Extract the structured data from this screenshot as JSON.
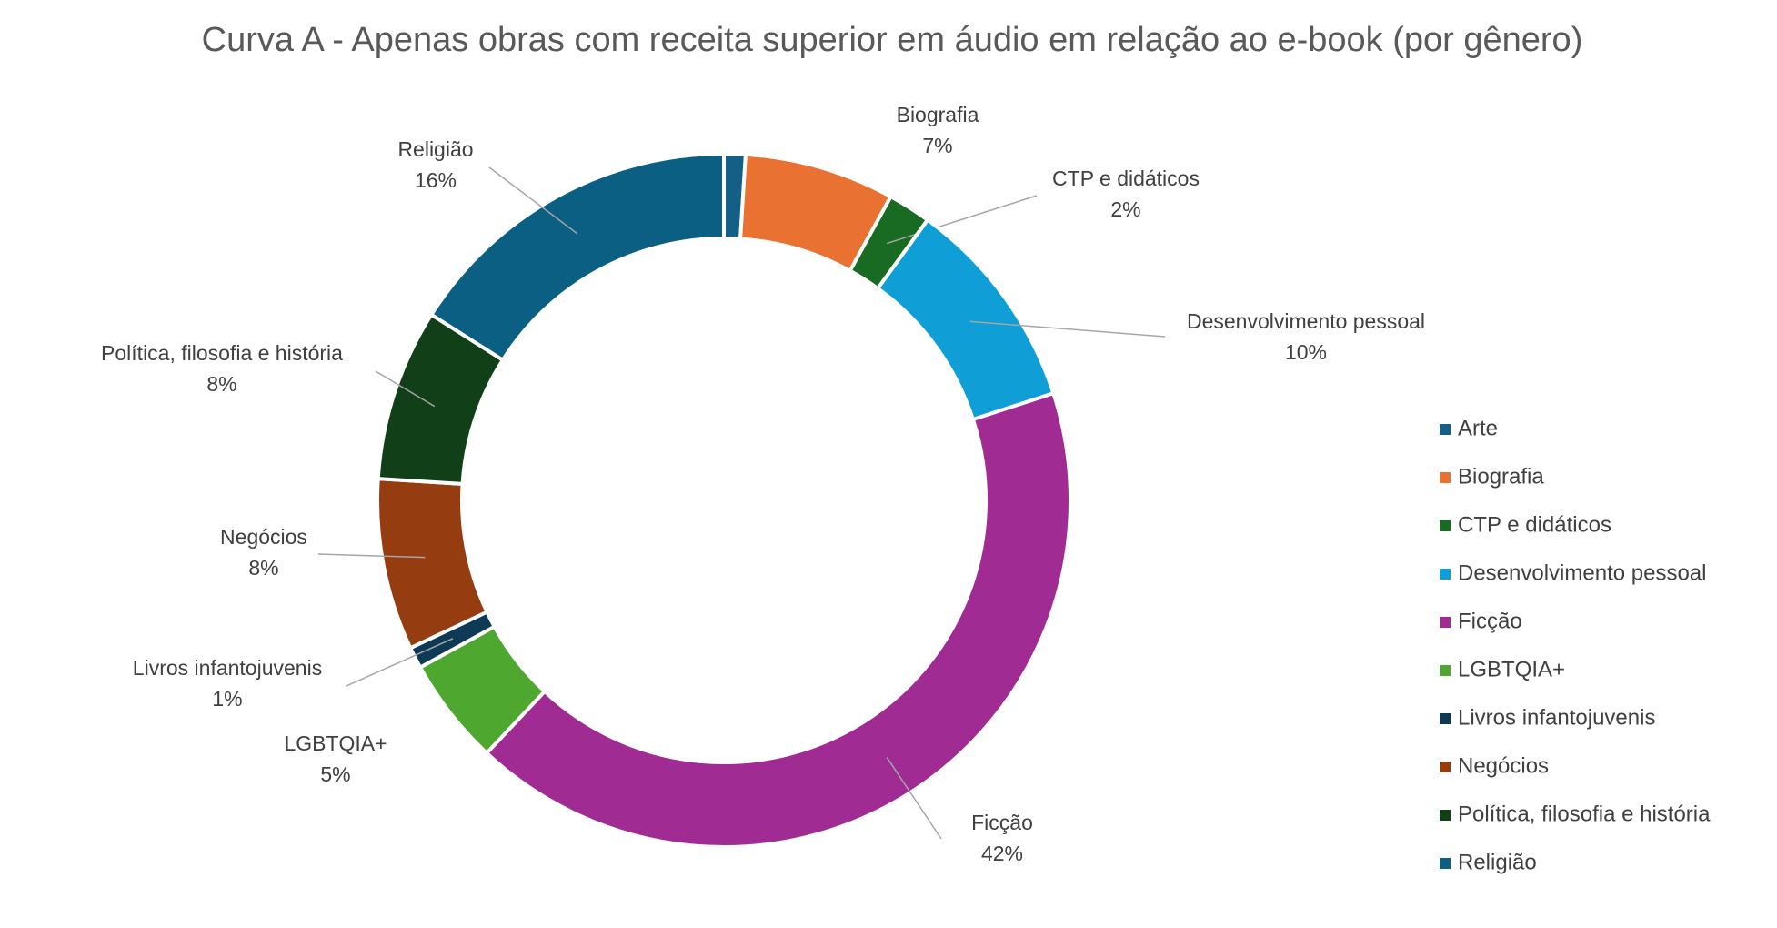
{
  "chart_data": {
    "type": "donut",
    "title": "Curva A - Apenas obras com receita superior em áudio em relação ao e-book (por gênero)",
    "categories": [
      "Arte",
      "Biografia",
      "CTP e didáticos",
      "Desenvolvimento pessoal",
      "Ficção",
      "LGBTQIA+",
      "Livros infantojuvenis",
      "Negócios",
      "Política, filosofia e história",
      "Religião"
    ],
    "values": [
      1,
      7,
      2,
      10,
      42,
      5,
      1,
      8,
      8,
      16
    ],
    "value_labels": [
      null,
      "7%",
      "2%",
      "10%",
      "42%",
      "5%",
      "1%",
      "8%",
      "8%",
      "16%"
    ],
    "colors": [
      "#145f86",
      "#e97132",
      "#196b24",
      "#0f9ed5",
      "#a02b93",
      "#4ea72e",
      "#0e3a56",
      "#963c11",
      "#113f17",
      "#0a5f82"
    ],
    "legend": "right"
  }
}
